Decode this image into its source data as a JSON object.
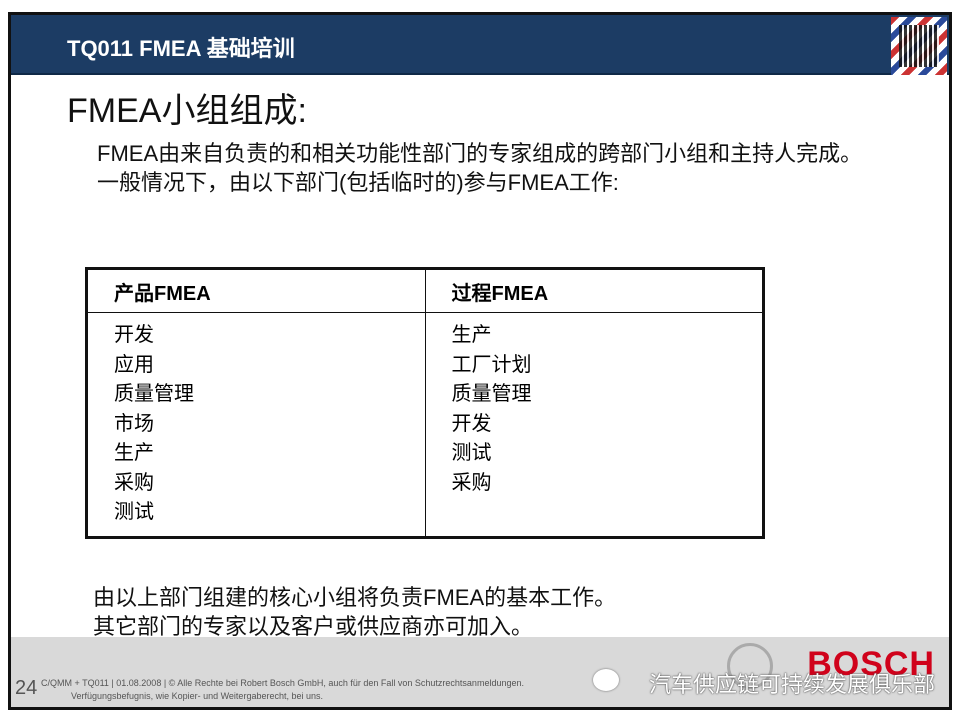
{
  "header": {
    "title": "TQ011 FMEA 基础培训",
    "qr_icon": "qr-code-icon"
  },
  "page_title": "FMEA小组组成:",
  "intro": [
    "FMEA由来自负责的和相关功能性部门的专家组成的跨部门小组和主持人完成。",
    "一般情况下，由以下部门(包括临时的)参与FMEA工作:"
  ],
  "table": {
    "headers": [
      "产品FMEA",
      "过程FMEA"
    ],
    "columns": [
      [
        "开发",
        "应用",
        "质量管理",
        "市场",
        "生产",
        "采购",
        "测试"
      ],
      [
        "生产",
        "工厂计划",
        "质量管理",
        "开发",
        "测试",
        "采购"
      ]
    ]
  },
  "outro": [
    "由以上部门组建的核心小组将负责FMEA的基本工作。",
    "其它部门的专家以及客户或供应商亦可加入。"
  ],
  "footer": {
    "page_number": "24",
    "legal_line1": "C/QMM + TQ011 | 01.08.2008 | © Alle Rechte bei Robert Bosch GmbH, auch für den Fall von Schutzrechtsanmeldungen.",
    "legal_line2": "Verfügungsbefugnis, wie Kopier- und Weitergaberecht, bei uns.",
    "brand": "BOSCH",
    "watermark": "汽车供应链可持续发展俱乐部",
    "brand_color": "#d0021b"
  }
}
